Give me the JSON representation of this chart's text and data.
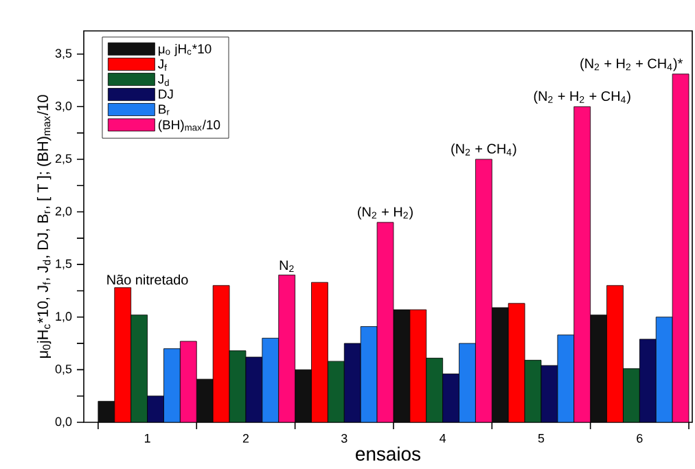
{
  "chart_data": {
    "type": "bar",
    "xlabel": "ensaios",
    "ylabel": "μ$_{0}$jH$_{c}$*10,  J$_{f}$,  J$_{d}$,  DJ,  B$_{r}$, [ T ]; (BH)$_{max}$/10",
    "categories": [
      "1",
      "2",
      "3",
      "4",
      "5",
      "6"
    ],
    "series": [
      {
        "name": "μ$_{o}$ jH$_{c}$*10",
        "color": "#111111",
        "values": [
          0.2,
          0.41,
          0.5,
          1.07,
          1.09,
          1.02
        ]
      },
      {
        "name": "J$_{f}$",
        "color": "#ff0000",
        "values": [
          1.28,
          1.3,
          1.33,
          1.07,
          1.13,
          1.3
        ]
      },
      {
        "name": "J$_{d}$",
        "color": "#0d5c2c",
        "values": [
          1.02,
          0.68,
          0.58,
          0.61,
          0.59,
          0.51
        ]
      },
      {
        "name": "DJ",
        "color": "#0a0a5e",
        "values": [
          0.25,
          0.62,
          0.75,
          0.46,
          0.54,
          0.79
        ]
      },
      {
        "name": "B$_{r}$",
        "color": "#1e7cf0",
        "values": [
          0.7,
          0.8,
          0.91,
          0.75,
          0.83,
          1.0
        ]
      },
      {
        "name": "(BH)$_{max}$/10",
        "color": "#ff0a78",
        "values": [
          0.77,
          1.4,
          1.9,
          2.5,
          3.0,
          3.31
        ]
      }
    ],
    "ylim": [
      0,
      3.72
    ],
    "yticks": [
      {
        "value": 0,
        "label": "0,0"
      },
      {
        "value": 0.5,
        "label": "0,5"
      },
      {
        "value": 1,
        "label": "1,0"
      },
      {
        "value": 1.5,
        "label": "1,5"
      },
      {
        "value": 2,
        "label": "2,0"
      },
      {
        "value": 2.5,
        "label": "2,5"
      },
      {
        "value": 3,
        "label": "3,0"
      },
      {
        "value": 3.5,
        "label": "3,5"
      }
    ],
    "legend": "top left",
    "grid": false,
    "annotations": [
      "Não nitretado",
      "N$_{2}$",
      "(N$_{2}$ + H$_{2}$)",
      "(N$_{2}$ + CH$_{4}$)",
      "(N$_{2}$ + H$_{2}$ + CH$_{4}$)",
      "(N$_{2}$ + H$_{2}$ + CH$_{4}$)*"
    ]
  }
}
